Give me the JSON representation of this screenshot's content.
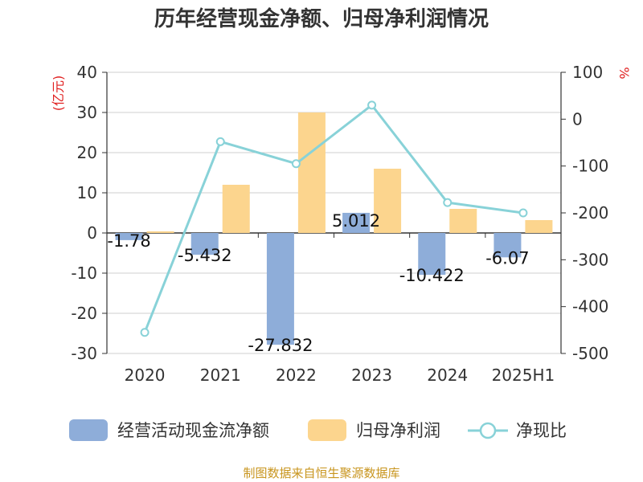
{
  "colors": {
    "cashflow": "#8eadd9",
    "netprofit": "#fcd58e",
    "ratio": "#88d2d8",
    "unit_red": "#e02020",
    "source_gold": "#c8951e"
  },
  "chart_data": {
    "type": "bar",
    "title": "历年经营现金净额、归母净利润情况",
    "categories": [
      "2020",
      "2021",
      "2022",
      "2023",
      "2024",
      "2025H1"
    ],
    "left_unit": "(亿元)",
    "right_unit": "%",
    "ylim_left": [
      -30,
      40
    ],
    "yticks_left": [
      40,
      30,
      20,
      10,
      0,
      -10,
      -20,
      -30
    ],
    "ylim_right": [
      -500,
      100
    ],
    "yticks_right": [
      100,
      0,
      -100,
      -200,
      -300,
      -400,
      -500
    ],
    "grid": true,
    "legend_position": "bottom",
    "series": [
      {
        "name": "经营活动现金流净额",
        "kind": "bar",
        "axis": "left",
        "values": [
          -1.78,
          -5.432,
          -27.832,
          5.012,
          -10.422,
          -6.07
        ],
        "labels": [
          "-1.78",
          "-5.432",
          "-27.832",
          "5.012",
          "-10.422",
          "-6.07"
        ]
      },
      {
        "name": "归母净利润",
        "kind": "bar",
        "axis": "left",
        "values": [
          0.4,
          12.0,
          30.0,
          16.0,
          6.0,
          3.2
        ]
      },
      {
        "name": "净现比",
        "kind": "line",
        "axis": "right",
        "values": [
          -455,
          -48,
          -95,
          30,
          -178,
          -200
        ]
      }
    ]
  },
  "source_text": "制图数据来自恒生聚源数据库"
}
